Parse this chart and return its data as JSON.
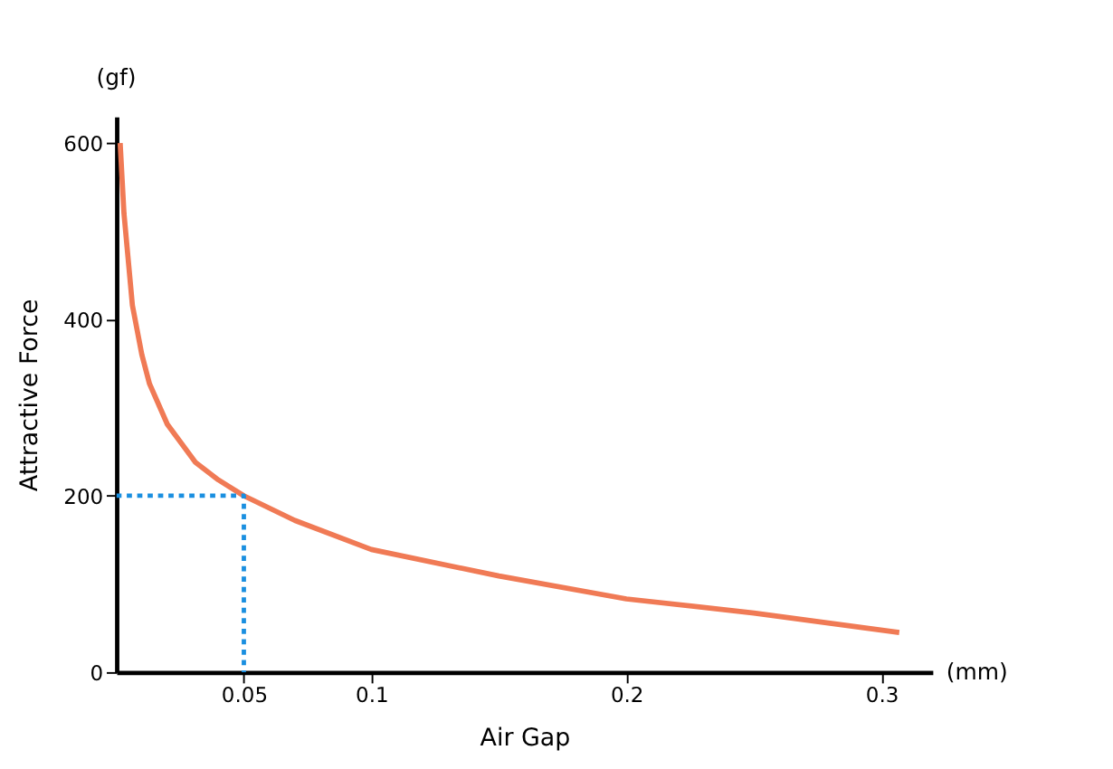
{
  "chart_data": {
    "type": "line",
    "xlabel": "Air Gap",
    "ylabel": "Attractive Force",
    "annotations": [
      "(gf)",
      "(mm)"
    ],
    "xlim": [
      0,
      0.32
    ],
    "ylim": [
      0,
      630
    ],
    "xticks": [
      0.05,
      0.1,
      0.2,
      0.3
    ],
    "yticks": [
      0,
      200,
      400,
      600
    ],
    "grid": false,
    "marker": "none",
    "series": [
      {
        "color": "#f07a55",
        "line_style": "solid",
        "x": [
          0.0015,
          0.003,
          0.0063,
          0.01,
          0.013,
          0.02,
          0.031,
          0.04,
          0.05,
          0.07,
          0.1,
          0.15,
          0.2,
          0.25,
          0.307
        ],
        "values": [
          600,
          520,
          416,
          360,
          327,
          281,
          238,
          218,
          200,
          172,
          139,
          109,
          83,
          67,
          45
        ]
      },
      {
        "color": "#1a8fe0",
        "line_style": "dotted",
        "x": [
          0,
          0.05,
          0.05
        ],
        "values": [
          200,
          200,
          0
        ]
      }
    ]
  }
}
